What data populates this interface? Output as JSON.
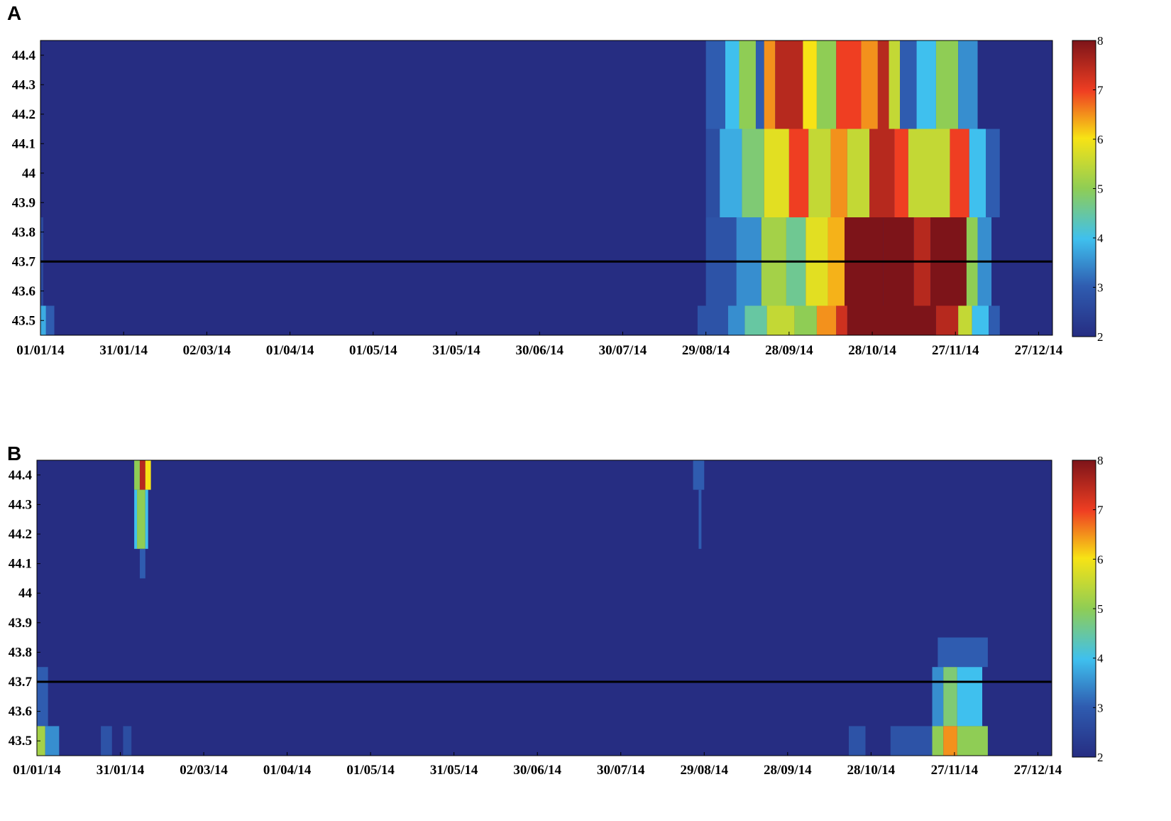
{
  "chart_data": [
    {
      "panel": "A",
      "type": "heatmap",
      "x_ticks": [
        "01/01/14",
        "31/01/14",
        "02/03/14",
        "01/04/14",
        "01/05/14",
        "31/05/14",
        "30/06/14",
        "30/07/14",
        "29/08/14",
        "28/09/14",
        "28/10/14",
        "27/11/14",
        "27/12/14"
      ],
      "y_ticks": [
        "44.4",
        "44.3",
        "44.2",
        "44.1",
        "44",
        "43.9",
        "43.8",
        "43.7",
        "43.6",
        "43.5"
      ],
      "colorbar_ticks": [
        "8",
        "7",
        "6",
        "5",
        "4",
        "3",
        "2"
      ],
      "colorbar_range": [
        2,
        8
      ],
      "xlim": [
        "01/01/14",
        "31/12/14"
      ],
      "ylim": [
        43.45,
        44.45
      ],
      "reference_line_y": 43.7,
      "rows": [
        {
          "y_range": [
            44.15,
            44.45
          ],
          "segments": [
            [
              "29/08/14",
              "05/09/14",
              3
            ],
            [
              "05/09/14",
              "10/09/14",
              4
            ],
            [
              "10/09/14",
              "16/09/14",
              5
            ],
            [
              "16/09/14",
              "19/09/14",
              3
            ],
            [
              "19/09/14",
              "23/09/14",
              6.5
            ],
            [
              "23/09/14",
              "03/10/14",
              7.5
            ],
            [
              "03/10/14",
              "08/10/14",
              6
            ],
            [
              "08/10/14",
              "15/10/14",
              5
            ],
            [
              "15/10/14",
              "24/10/14",
              7
            ],
            [
              "24/10/14",
              "30/10/14",
              6.5
            ],
            [
              "30/10/14",
              "03/11/14",
              7.5
            ],
            [
              "03/11/14",
              "07/11/14",
              5.5
            ],
            [
              "07/11/14",
              "13/11/14",
              3
            ],
            [
              "13/11/14",
              "20/11/14",
              4
            ],
            [
              "20/11/14",
              "28/11/14",
              5
            ],
            [
              "28/11/14",
              "05/12/14",
              3.5
            ]
          ]
        },
        {
          "y_range": [
            43.85,
            44.15
          ],
          "segments": [
            [
              "29/08/14",
              "03/09/14",
              2.7
            ],
            [
              "03/09/14",
              "11/09/14",
              3.8
            ],
            [
              "11/09/14",
              "19/09/14",
              4.8
            ],
            [
              "19/09/14",
              "28/09/14",
              5.8
            ],
            [
              "28/09/14",
              "05/10/14",
              7
            ],
            [
              "05/10/14",
              "13/10/14",
              5.5
            ],
            [
              "13/10/14",
              "19/10/14",
              6.5
            ],
            [
              "19/10/14",
              "27/10/14",
              5.5
            ],
            [
              "27/10/14",
              "05/11/14",
              7.5
            ],
            [
              "05/11/14",
              "10/11/14",
              7
            ],
            [
              "10/11/14",
              "25/11/14",
              5.5
            ],
            [
              "25/11/14",
              "02/12/14",
              7
            ],
            [
              "02/12/14",
              "08/12/14",
              4
            ],
            [
              "08/12/14",
              "13/12/14",
              3
            ]
          ]
        },
        {
          "y_range": [
            43.55,
            43.85
          ],
          "segments": [
            [
              "01/01/14",
              "02/01/14",
              2.6
            ],
            [
              "29/08/14",
              "09/09/14",
              2.8
            ],
            [
              "09/09/14",
              "18/09/14",
              3.5
            ],
            [
              "18/09/14",
              "27/09/14",
              5.2
            ],
            [
              "27/09/14",
              "04/10/14",
              4.6
            ],
            [
              "04/10/14",
              "12/10/14",
              5.8
            ],
            [
              "12/10/14",
              "18/10/14",
              6.3
            ],
            [
              "18/10/14",
              "01/11/14",
              8
            ],
            [
              "01/11/14",
              "12/11/14",
              8
            ],
            [
              "12/11/14",
              "18/11/14",
              7.5
            ],
            [
              "18/11/14",
              "01/12/14",
              8
            ],
            [
              "01/12/14",
              "05/12/14",
              5
            ],
            [
              "05/12/14",
              "10/12/14",
              3.5
            ]
          ]
        },
        {
          "y_range": [
            43.45,
            43.55
          ],
          "segments": [
            [
              "01/01/14",
              "03/01/14",
              3.8
            ],
            [
              "03/01/14",
              "06/01/14",
              3
            ],
            [
              "26/08/14",
              "06/09/14",
              2.8
            ],
            [
              "06/09/14",
              "12/09/14",
              3.5
            ],
            [
              "12/09/14",
              "20/09/14",
              4.5
            ],
            [
              "20/09/14",
              "30/09/14",
              5.5
            ],
            [
              "30/09/14",
              "08/10/14",
              5
            ],
            [
              "08/10/14",
              "15/10/14",
              6.5
            ],
            [
              "15/10/14",
              "19/10/14",
              7.3
            ],
            [
              "19/10/14",
              "20/11/14",
              8
            ],
            [
              "20/11/14",
              "28/11/14",
              7.5
            ],
            [
              "28/11/14",
              "03/12/14",
              5.5
            ],
            [
              "03/12/14",
              "09/12/14",
              4
            ],
            [
              "09/12/14",
              "13/12/14",
              3
            ]
          ]
        }
      ]
    },
    {
      "panel": "B",
      "type": "heatmap",
      "x_ticks": [
        "01/01/14",
        "31/01/14",
        "02/03/14",
        "01/04/14",
        "01/05/14",
        "31/05/14",
        "30/06/14",
        "30/07/14",
        "29/08/14",
        "28/09/14",
        "28/10/14",
        "27/11/14",
        "27/12/14"
      ],
      "y_ticks": [
        "44.4",
        "44.3",
        "44.2",
        "44.1",
        "44",
        "43.9",
        "43.8",
        "43.7",
        "43.6",
        "43.5"
      ],
      "colorbar_ticks": [
        "8",
        "7",
        "6",
        "5",
        "4",
        "3",
        "2"
      ],
      "colorbar_range": [
        2,
        8
      ],
      "xlim": [
        "01/01/14",
        "31/12/14"
      ],
      "ylim": [
        43.45,
        44.45
      ],
      "reference_line_y": 43.7,
      "rows": [
        {
          "y_range": [
            44.35,
            44.45
          ],
          "segments": [
            [
              "05/02/14",
              "07/02/14",
              5
            ],
            [
              "07/02/14",
              "09/02/14",
              7.5
            ],
            [
              "09/02/14",
              "11/02/14",
              6
            ],
            [
              "25/08/14",
              "29/08/14",
              3
            ]
          ]
        },
        {
          "y_range": [
            44.15,
            44.35
          ],
          "segments": [
            [
              "05/02/14",
              "06/02/14",
              4
            ],
            [
              "06/02/14",
              "09/02/14",
              5
            ],
            [
              "09/02/14",
              "10/02/14",
              4
            ],
            [
              "27/08/14",
              "28/08/14",
              3
            ]
          ]
        },
        {
          "y_range": [
            44.05,
            44.15
          ],
          "segments": [
            [
              "07/02/14",
              "09/02/14",
              3
            ]
          ]
        },
        {
          "y_range": [
            43.75,
            43.85
          ],
          "segments": [
            [
              "21/11/14",
              "09/12/14",
              3
            ]
          ]
        },
        {
          "y_range": [
            43.55,
            43.75
          ],
          "segments": [
            [
              "01/01/14",
              "05/01/14",
              3
            ],
            [
              "19/11/14",
              "23/11/14",
              3.5
            ],
            [
              "23/11/14",
              "28/11/14",
              4.8
            ],
            [
              "28/11/14",
              "07/12/14",
              4
            ]
          ]
        },
        {
          "y_range": [
            43.45,
            43.55
          ],
          "segments": [
            [
              "01/01/14",
              "04/01/14",
              5.2
            ],
            [
              "04/01/14",
              "09/01/14",
              3.5
            ],
            [
              "24/01/14",
              "28/01/14",
              2.8
            ],
            [
              "01/02/14",
              "04/02/14",
              2.7
            ],
            [
              "20/10/14",
              "26/10/14",
              2.8
            ],
            [
              "04/11/14",
              "19/11/14",
              2.8
            ],
            [
              "19/11/14",
              "23/11/14",
              5
            ],
            [
              "23/11/14",
              "28/11/14",
              6.5
            ],
            [
              "28/11/14",
              "09/12/14",
              5
            ]
          ]
        }
      ]
    }
  ]
}
